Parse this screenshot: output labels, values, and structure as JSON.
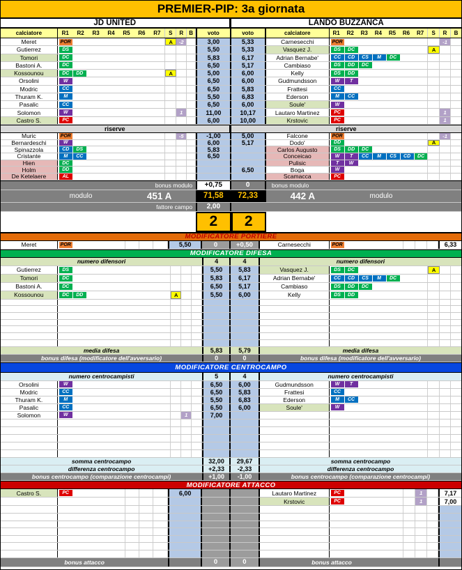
{
  "title": "PREMIER-PIP: 3a giornata",
  "teams": {
    "left": "JD UNITED",
    "right": "LANDO BUZZANCA"
  },
  "cols": {
    "calciatore": "calciatore",
    "voto": "voto",
    "s": "S",
    "r": "R",
    "b": "B",
    "roles": [
      "R1",
      "R2",
      "R3",
      "R4",
      "R5",
      "R6",
      "R7"
    ]
  },
  "colors": {
    "accent_gold": "#FFC000",
    "banner_portiere": "#E36C0A",
    "banner_difesa": "#00B050",
    "banner_centrocampo": "#0747E0",
    "banner_attacco": "#CC0000",
    "voto_blue": "#B4C9E6",
    "highlight_green": "#D8E4BC",
    "no_vote_pink": "#E6B8B7",
    "gray_bar": "#808080",
    "total_bg": "#000000",
    "header_yellow": "#FFFF99"
  },
  "main": {
    "players": [
      {
        "l": {
          "name": "Meret",
          "roles": [
            {
              "t": "POR",
              "c": "o"
            }
          ],
          "s": "A",
          "r": "-2",
          "voto": "3,00"
        },
        "r": {
          "voto": "5,33",
          "name": "Carnesecchi",
          "roles": [
            {
              "t": "POR",
              "c": "o"
            }
          ],
          "r": "-1"
        }
      },
      {
        "l": {
          "name": "Gutierrez",
          "roles": [
            {
              "t": "DS",
              "c": "g"
            }
          ],
          "voto": "5,50"
        },
        "r": {
          "voto": "5,33",
          "name": "Vasquez J.",
          "bg": "g",
          "roles": [
            {
              "t": "DS",
              "c": "g"
            },
            {
              "t": "DC",
              "c": "g"
            }
          ],
          "s": "A"
        }
      },
      {
        "l": {
          "name": "Tomori",
          "bg": "g",
          "roles": [
            {
              "t": "DC",
              "c": "g"
            }
          ],
          "voto": "5,83"
        },
        "r": {
          "voto": "6,17",
          "name": "Adrian Bernabe'",
          "roles": [
            {
              "t": "CC",
              "c": "b"
            },
            {
              "t": "CD",
              "c": "b"
            },
            {
              "t": "CS",
              "c": "b"
            },
            {
              "t": "M",
              "c": "b"
            },
            {
              "t": "DC",
              "c": "g"
            }
          ]
        }
      },
      {
        "l": {
          "name": "Bastoni A.",
          "roles": [
            {
              "t": "DC",
              "c": "g"
            }
          ],
          "voto": "6,50"
        },
        "r": {
          "voto": "5,17",
          "name": "Cambiaso",
          "roles": [
            {
              "t": "DS",
              "c": "g"
            },
            {
              "t": "DD",
              "c": "g"
            },
            {
              "t": "DC",
              "c": "g"
            }
          ]
        }
      },
      {
        "l": {
          "name": "Kossounou",
          "bg": "g",
          "roles": [
            {
              "t": "DC",
              "c": "g"
            },
            {
              "t": "DD",
              "c": "g"
            }
          ],
          "s": "A",
          "voto": "5,00"
        },
        "r": {
          "voto": "6,00",
          "name": "Kelly",
          "roles": [
            {
              "t": "DS",
              "c": "g"
            },
            {
              "t": "DD",
              "c": "g"
            }
          ]
        }
      },
      {
        "l": {
          "name": "Orsolini",
          "roles": [
            {
              "t": "W",
              "c": "p"
            }
          ],
          "voto": "6,50"
        },
        "r": {
          "voto": "6,00",
          "name": "Gudmundsson",
          "roles": [
            {
              "t": "W",
              "c": "p"
            },
            {
              "t": "T",
              "c": "p"
            }
          ]
        }
      },
      {
        "l": {
          "name": "Modric",
          "roles": [
            {
              "t": "CC",
              "c": "b"
            }
          ],
          "voto": "6,50"
        },
        "r": {
          "voto": "5,83",
          "name": "Frattesi",
          "roles": [
            {
              "t": "CC",
              "c": "b"
            }
          ]
        }
      },
      {
        "l": {
          "name": "Thuram K.",
          "roles": [
            {
              "t": "M",
              "c": "b"
            }
          ],
          "voto": "5,50"
        },
        "r": {
          "voto": "6,83",
          "name": "Ederson",
          "roles": [
            {
              "t": "M",
              "c": "b"
            },
            {
              "t": "CC",
              "c": "b"
            }
          ]
        }
      },
      {
        "l": {
          "name": "Pasalic",
          "roles": [
            {
              "t": "CC",
              "c": "b"
            }
          ],
          "voto": "6,50"
        },
        "r": {
          "voto": "6,00",
          "name": "Soule'",
          "bg": "g",
          "roles": [
            {
              "t": "W",
              "c": "p"
            }
          ]
        }
      },
      {
        "l": {
          "name": "Solomon",
          "roles": [
            {
              "t": "W",
              "c": "p"
            }
          ],
          "r": "1",
          "voto": "11,00"
        },
        "r": {
          "voto": "10,17",
          "name": "Lautaro Martinez",
          "roles": [
            {
              "t": "PC",
              "c": "r"
            }
          ],
          "r": "1"
        }
      },
      {
        "l": {
          "name": "Castro S.",
          "bg": "g",
          "roles": [
            {
              "t": "PC",
              "c": "r"
            }
          ],
          "voto": "6,00"
        },
        "r": {
          "voto": "10,00",
          "name": "Krstovic",
          "bg": "g",
          "roles": [
            {
              "t": "PC",
              "c": "r"
            }
          ],
          "r": "1"
        }
      }
    ],
    "riserve_label": "riserve",
    "reserves": [
      {
        "l": {
          "name": "Muric",
          "roles": [
            {
              "t": "POR",
              "c": "o"
            }
          ],
          "r": "-5",
          "voto": "-1,00"
        },
        "r": {
          "voto": "5,00",
          "name": "Falcone",
          "roles": [
            {
              "t": "POR",
              "c": "o"
            }
          ],
          "r": "-1"
        }
      },
      {
        "l": {
          "name": "Bernardeschi",
          "roles": [
            {
              "t": "W",
              "c": "p"
            }
          ],
          "voto": "6,00"
        },
        "r": {
          "voto": "5,17",
          "name": "Dodo'",
          "roles": [
            {
              "t": "DD",
              "c": "g"
            }
          ],
          "s": "A"
        }
      },
      {
        "l": {
          "name": "Spinazzola",
          "roles": [
            {
              "t": "CD",
              "c": "b"
            },
            {
              "t": "DS",
              "c": "g"
            }
          ],
          "voto": "5,83"
        },
        "r": {
          "name": "Carlos Augusto",
          "bg": "p",
          "roles": [
            {
              "t": "DS",
              "c": "g"
            },
            {
              "t": "DD",
              "c": "g"
            },
            {
              "t": "DC",
              "c": "g"
            }
          ]
        }
      },
      {
        "l": {
          "name": "Cristante",
          "roles": [
            {
              "t": "M",
              "c": "b"
            },
            {
              "t": "CC",
              "c": "b"
            }
          ],
          "voto": "6,50"
        },
        "r": {
          "name": "Conceicao",
          "bg": "p",
          "roles": [
            {
              "t": "W",
              "c": "p"
            },
            {
              "t": "T",
              "c": "p"
            },
            {
              "t": "CC",
              "c": "b"
            },
            {
              "t": "M",
              "c": "b"
            },
            {
              "t": "CS",
              "c": "b"
            },
            {
              "t": "CD",
              "c": "b"
            },
            {
              "t": "DC",
              "c": "g"
            }
          ]
        }
      },
      {
        "l": {
          "name": "Hien",
          "bg": "p",
          "roles": [
            {
              "t": "DC",
              "c": "g"
            }
          ]
        },
        "r": {
          "name": "Pulisic",
          "bg": "p",
          "roles": [
            {
              "t": "T",
              "c": "p"
            },
            {
              "t": "W",
              "c": "p"
            }
          ]
        }
      },
      {
        "l": {
          "name": "Holm",
          "bg": "p",
          "roles": [
            {
              "t": "DD",
              "c": "g"
            }
          ]
        },
        "r": {
          "voto": "6,50",
          "name": "Boga",
          "roles": [
            {
              "t": "W",
              "c": "p"
            }
          ]
        }
      },
      {
        "l": {
          "name": "De Ketelaere",
          "bg": "p",
          "roles": [
            {
              "t": "AL",
              "c": "r"
            }
          ]
        },
        "r": {
          "name": "Scamacca",
          "bg": "p",
          "roles": [
            {
              "t": "PC",
              "c": "r"
            }
          ]
        }
      }
    ]
  },
  "summary": {
    "bonus_modulo_label": "bonus modulo",
    "bonus_modulo_left": "+0,75",
    "bonus_modulo_right": "0",
    "modulo_label": "modulo",
    "modulo_left": "451 A",
    "modulo_right": "442 A",
    "total_left": "71,58",
    "total_right": "72,33",
    "fattore_label": "fattore campo",
    "fattore_value": "2,00",
    "score_left": "2",
    "score_right": "2"
  },
  "portiere": {
    "banner": "MODIFICATORE PORTIERE",
    "left": {
      "name": "Meret",
      "roles": [
        {
          "t": "POR",
          "c": "o"
        }
      ],
      "voto": "5,50"
    },
    "bonus_left": "0",
    "bonus_right": "+0,50",
    "right": {
      "name": "Carnesecchi",
      "roles": [
        {
          "t": "POR",
          "c": "o"
        }
      ],
      "voto": "6,33",
      "vc": "w"
    }
  },
  "difesa": {
    "banner": "MODIFICATORE DIFESA",
    "numero_label": "numero difensori",
    "numero_left": "4",
    "numero_right": "4",
    "rows": [
      {
        "l": {
          "name": "Gutierrez",
          "roles": [
            {
              "t": "DS",
              "c": "g"
            }
          ],
          "voto": "5,50"
        },
        "r": {
          "voto": "5,83",
          "name": "Vasquez J.",
          "bg": "g",
          "roles": [
            {
              "t": "DS",
              "c": "g"
            },
            {
              "t": "DC",
              "c": "g"
            }
          ],
          "s": "A"
        }
      },
      {
        "l": {
          "name": "Tomori",
          "bg": "g",
          "roles": [
            {
              "t": "DC",
              "c": "g"
            }
          ],
          "voto": "5,83"
        },
        "r": {
          "voto": "6,17",
          "name": "Adrian Bernabe'",
          "roles": [
            {
              "t": "CC",
              "c": "b"
            },
            {
              "t": "CD",
              "c": "b"
            },
            {
              "t": "CS",
              "c": "b"
            },
            {
              "t": "M",
              "c": "b"
            },
            {
              "t": "DC",
              "c": "g"
            }
          ]
        }
      },
      {
        "l": {
          "name": "Bastoni A.",
          "roles": [
            {
              "t": "DC",
              "c": "g"
            }
          ],
          "voto": "6,50"
        },
        "r": {
          "voto": "5,17",
          "name": "Cambiaso",
          "roles": [
            {
              "t": "DS",
              "c": "g"
            },
            {
              "t": "DD",
              "c": "g"
            },
            {
              "t": "DC",
              "c": "g"
            }
          ]
        }
      },
      {
        "l": {
          "name": "Kossounou",
          "bg": "g",
          "roles": [
            {
              "t": "DC",
              "c": "g"
            },
            {
              "t": "DD",
              "c": "g"
            }
          ],
          "s": "A",
          "voto": "5,50"
        },
        "r": {
          "voto": "6,00",
          "name": "Kelly",
          "roles": [
            {
              "t": "DS",
              "c": "g"
            },
            {
              "t": "DD",
              "c": "g"
            }
          ]
        }
      },
      {
        "h": "s"
      },
      {
        "h": "s"
      },
      {
        "h": "s"
      },
      {
        "h": "s"
      },
      {
        "h": "s"
      },
      {
        "h": "s"
      },
      {
        "h": "s"
      }
    ],
    "media_label": "media difesa",
    "media_left": "5,83",
    "media_right": "5,79",
    "bonus_label": "bonus difesa (modificatore dell'avversario)",
    "bonus_left": "0",
    "bonus_right": "0"
  },
  "centrocampo": {
    "banner": "MODIFICATORE CENTROCAMPO",
    "numero_label": "numero centrocampisti",
    "numero_left": "5",
    "numero_right": "4",
    "rows": [
      {
        "l": {
          "name": "Orsolini",
          "roles": [
            {
              "t": "W",
              "c": "p"
            }
          ],
          "voto": "6,50"
        },
        "r": {
          "voto": "6,00",
          "name": "Gudmundsson",
          "roles": [
            {
              "t": "W",
              "c": "p"
            },
            {
              "t": "T",
              "c": "p"
            }
          ]
        }
      },
      {
        "l": {
          "name": "Modric",
          "roles": [
            {
              "t": "CC",
              "c": "b"
            }
          ],
          "voto": "6,50"
        },
        "r": {
          "voto": "5,83",
          "name": "Frattesi",
          "roles": [
            {
              "t": "CC",
              "c": "b"
            }
          ]
        }
      },
      {
        "l": {
          "name": "Thuram K.",
          "roles": [
            {
              "t": "M",
              "c": "b"
            }
          ],
          "voto": "5,50"
        },
        "r": {
          "voto": "6,83",
          "name": "Ederson",
          "roles": [
            {
              "t": "M",
              "c": "b"
            },
            {
              "t": "CC",
              "c": "b"
            }
          ]
        }
      },
      {
        "l": {
          "name": "Pasalic",
          "roles": [
            {
              "t": "CC",
              "c": "b"
            }
          ],
          "voto": "6,50"
        },
        "r": {
          "voto": "6,00",
          "name": "Soule'",
          "bg": "g",
          "roles": [
            {
              "t": "W",
              "c": "p"
            }
          ]
        }
      },
      {
        "l": {
          "name": "Solomon",
          "roles": [
            {
              "t": "W",
              "c": "p"
            }
          ],
          "r": "1",
          "voto": "7,00"
        },
        "r": {}
      },
      {},
      {},
      {},
      {},
      {}
    ],
    "somma_label": "somma centrocampo",
    "somma_left": "32,00",
    "somma_right": "29,67",
    "diff_label": "differenza centrocampo",
    "diff_left": "+2,33",
    "diff_right": "-2,33",
    "bonus_label": "bonus centrocampo (comparazione centrocampi)",
    "bonus_left": "+1,00",
    "bonus_right": "-1,00"
  },
  "attacco": {
    "banner": "MODIFICATORE ATTACCO",
    "rows": [
      {
        "l": {
          "name": "Castro S.",
          "bg": "g",
          "roles": [
            {
              "t": "PC",
              "c": "r"
            }
          ],
          "voto": "6,00"
        },
        "r": {
          "name": "Lautaro Martinez",
          "roles": [
            {
              "t": "PC",
              "c": "r"
            }
          ],
          "r": "1",
          "voto": "7,17",
          "vc": "w"
        }
      },
      {
        "l": {},
        "r": {
          "name": "Krstovic",
          "bg": "g",
          "roles": [
            {
              "t": "PC",
              "c": "r"
            }
          ],
          "r": "1",
          "voto": "7,00",
          "vc": "w"
        }
      },
      {
        "h": "s"
      },
      {
        "h": "s"
      },
      {
        "h": "s"
      },
      {
        "h": "s"
      },
      {
        "h": "s"
      },
      {
        "h": "s"
      },
      {
        "h": "s"
      }
    ],
    "bonus_label": "bonus attacco",
    "bonus_left": "0",
    "bonus_right": "0"
  }
}
